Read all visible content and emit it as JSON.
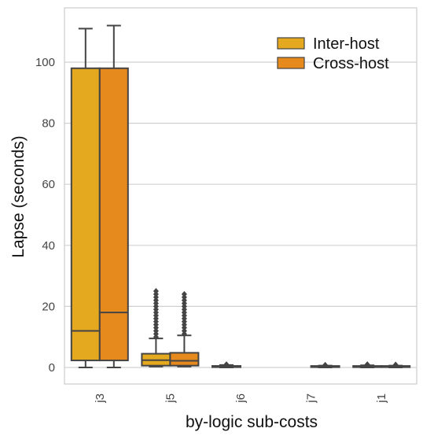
{
  "chart_data": {
    "type": "boxplot",
    "title": "",
    "xlabel": "by-logic sub-costs",
    "ylabel": "Lapse (seconds)",
    "ylim": [
      -5,
      115
    ],
    "yticks": [
      0,
      20,
      40,
      60,
      80,
      100
    ],
    "grid": "horizontal",
    "legend_position": "top-right",
    "categories": [
      "j3",
      "j5",
      "j6",
      "j7",
      "j1"
    ],
    "series": [
      {
        "name": "Inter-host",
        "color": "#E5A91F",
        "boxes": [
          {
            "category": "j3",
            "whislo": 0,
            "q1": 2.3,
            "med": 12,
            "q3": 98,
            "whishi": 111,
            "fliers": []
          },
          {
            "category": "j5",
            "whislo": 0.3,
            "q1": 0.6,
            "med": 2.4,
            "q3": 4.5,
            "whishi": 9.5,
            "fliers": [
              10,
              11,
              12,
              13,
              14,
              15,
              16,
              17,
              18,
              19,
              20,
              21,
              22,
              23,
              24,
              25
            ]
          },
          {
            "category": "j6",
            "whislo": 0,
            "q1": 0.1,
            "med": 0.3,
            "q3": 0.5,
            "whishi": 0.8,
            "fliers": [
              1.0
            ]
          },
          {
            "category": "j7",
            "whislo": null,
            "q1": null,
            "med": null,
            "q3": null,
            "whishi": null,
            "fliers": []
          },
          {
            "category": "j1",
            "whislo": 0,
            "q1": 0.1,
            "med": 0.2,
            "q3": 0.4,
            "whishi": 0.7,
            "fliers": [
              1.0
            ]
          }
        ]
      },
      {
        "name": "Cross-host",
        "color": "#E68A1E",
        "boxes": [
          {
            "category": "j3",
            "whislo": 0,
            "q1": 2.3,
            "med": 18,
            "q3": 98,
            "whishi": 112,
            "fliers": []
          },
          {
            "category": "j5",
            "whislo": 0.3,
            "q1": 0.6,
            "med": 2.2,
            "q3": 4.8,
            "whishi": 10.5,
            "fliers": [
              11,
              12,
              13,
              14,
              15,
              16,
              17,
              18,
              19,
              20,
              21,
              22,
              23,
              24
            ]
          },
          {
            "category": "j6",
            "whislo": null,
            "q1": null,
            "med": null,
            "q3": null,
            "whishi": null,
            "fliers": []
          },
          {
            "category": "j7",
            "whislo": 0,
            "q1": 0.1,
            "med": 0.2,
            "q3": 0.4,
            "whishi": 0.6,
            "fliers": [
              0.8
            ]
          },
          {
            "category": "j1",
            "whislo": 0,
            "q1": 0.1,
            "med": 0.2,
            "q3": 0.4,
            "whishi": 0.6,
            "fliers": [
              0.9
            ]
          }
        ]
      }
    ]
  }
}
